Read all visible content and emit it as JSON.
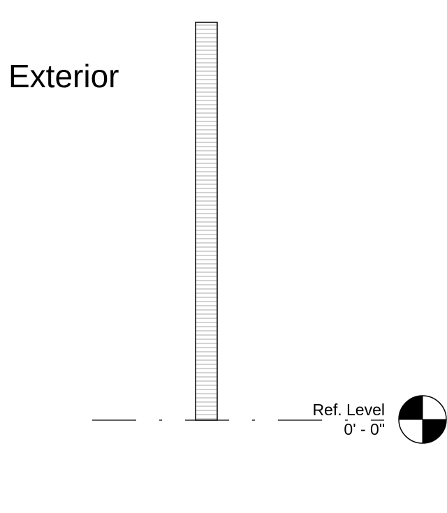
{
  "view": {
    "side_label": "Exterior"
  },
  "reference_level": {
    "name": "Ref. Level",
    "elevation": "0' - 0\""
  },
  "colors": {
    "line": "#000000",
    "hatch": "#8a8a8a",
    "background": "#ffffff"
  },
  "icons": {
    "level_head": "level-head-target-icon"
  }
}
